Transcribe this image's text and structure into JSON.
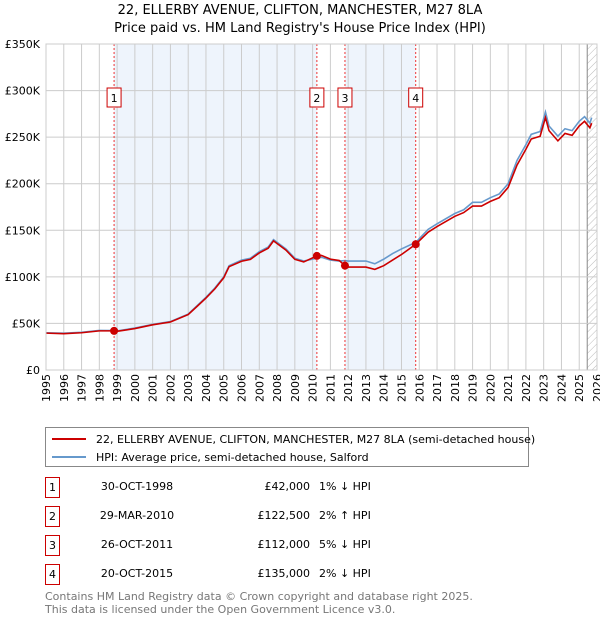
{
  "chart_data": {
    "type": "line",
    "title": "22, ELLERBY AVENUE, CLIFTON, MANCHESTER, M27 8LA",
    "subtitle": "Price paid vs. HM Land Registry's House Price Index (HPI)",
    "ylim": [
      0,
      350000
    ],
    "xlim": [
      1995,
      2026
    ],
    "y_ticks": [
      {
        "v": 0,
        "label": "£0"
      },
      {
        "v": 50000,
        "label": "£50K"
      },
      {
        "v": 100000,
        "label": "£100K"
      },
      {
        "v": 150000,
        "label": "£150K"
      },
      {
        "v": 200000,
        "label": "£200K"
      },
      {
        "v": 250000,
        "label": "£250K"
      },
      {
        "v": 300000,
        "label": "£300K"
      },
      {
        "v": 350000,
        "label": "£350K"
      }
    ],
    "x_ticks": [
      "1995",
      "1996",
      "1997",
      "1998",
      "1999",
      "2000",
      "2001",
      "2002",
      "2003",
      "2004",
      "2005",
      "2006",
      "2007",
      "2008",
      "2009",
      "2010",
      "2011",
      "2012",
      "2013",
      "2014",
      "2015",
      "2016",
      "2017",
      "2018",
      "2019",
      "2020",
      "2021",
      "2022",
      "2023",
      "2024",
      "2025",
      "2026"
    ],
    "grid": true,
    "legend_placement": "bottom",
    "series": [
      {
        "name": "22, ELLERBY AVENUE, CLIFTON, MANCHESTER, M27 8LA (semi-detached house)",
        "color": "#cc0000",
        "x": [
          1995,
          1996,
          1997,
          1998,
          1998.83,
          1999,
          2000,
          2001,
          2002,
          2003,
          2003.5,
          2004,
          2004.5,
          2005,
          2005.3,
          2006,
          2006.5,
          2007,
          2007.5,
          2007.8,
          2008.5,
          2009,
          2009.5,
          2010.24,
          2010.5,
          2011,
          2011.5,
          2011.82,
          2012,
          2013,
          2013.5,
          2014,
          2014.5,
          2015,
          2015.8,
          2016.5,
          2017,
          2018,
          2018.5,
          2019,
          2019.5,
          2020,
          2020.5,
          2021,
          2021.5,
          2022,
          2022.3,
          2022.8,
          2023.1,
          2023.3,
          2023.8,
          2024.2,
          2024.6,
          2025,
          2025.3,
          2025.6,
          2025.7
        ],
        "y": [
          39600,
          39000,
          40000,
          42000,
          42000,
          41500,
          44500,
          48500,
          51500,
          59500,
          68300,
          77200,
          87100,
          99000,
          110900,
          116800,
          118800,
          125700,
          130700,
          138600,
          128700,
          118800,
          116000,
          122500,
          123000,
          119000,
          117500,
          112000,
          110500,
          110500,
          108000,
          112000,
          118000,
          124000,
          135000,
          148000,
          154000,
          165000,
          169000,
          176000,
          176000,
          181000,
          185000,
          196000,
          220000,
          237000,
          248000,
          251000,
          271000,
          257000,
          246000,
          254000,
          252000,
          262000,
          267000,
          260000,
          265000
        ]
      },
      {
        "name": "HPI: Average price, semi-detached house, Salford",
        "color": "#6699cc",
        "x": [
          1995,
          1996,
          1997,
          1998,
          1998.83,
          1999,
          2000,
          2001,
          2002,
          2003,
          2003.5,
          2004,
          2004.5,
          2005,
          2005.3,
          2006,
          2006.5,
          2007,
          2007.5,
          2007.8,
          2008.5,
          2009,
          2009.5,
          2010.24,
          2010.5,
          2011,
          2011.5,
          2011.82,
          2012,
          2013,
          2013.5,
          2014,
          2014.5,
          2015,
          2015.8,
          2016.5,
          2017,
          2018,
          2018.5,
          2019,
          2019.5,
          2020,
          2020.5,
          2021,
          2021.5,
          2022,
          2022.3,
          2022.8,
          2023.1,
          2023.3,
          2023.8,
          2024.2,
          2024.6,
          2025,
          2025.3,
          2025.6,
          2025.7
        ],
        "y": [
          40000,
          39500,
          40500,
          42500,
          42400,
          42000,
          45000,
          49000,
          52000,
          60000,
          69000,
          78000,
          88000,
          100000,
          112000,
          118000,
          120000,
          127000,
          132000,
          140000,
          130000,
          120000,
          117000,
          120000,
          121000,
          118000,
          117000,
          117500,
          117000,
          117000,
          114000,
          119000,
          125000,
          130000,
          137000,
          151000,
          157000,
          168000,
          172000,
          180000,
          180000,
          185000,
          189000,
          200000,
          225000,
          242000,
          253000,
          256000,
          277000,
          262000,
          251000,
          259000,
          257000,
          267000,
          272000,
          265000,
          271000
        ]
      }
    ],
    "sales": [
      {
        "n": "1",
        "x": 1998.83,
        "y": 42000,
        "date": "30-OCT-1998",
        "price": "£42,000",
        "hpi": "1% ↓ HPI"
      },
      {
        "n": "2",
        "x": 2010.24,
        "y": 122500,
        "date": "29-MAR-2010",
        "price": "£122,500",
        "hpi": "2% ↑ HPI"
      },
      {
        "n": "3",
        "x": 2011.82,
        "y": 112000,
        "date": "26-OCT-2011",
        "price": "£112,000",
        "hpi": "5% ↓ HPI"
      },
      {
        "n": "4",
        "x": 2015.8,
        "y": 135000,
        "date": "20-OCT-2015",
        "price": "£135,000",
        "hpi": "2% ↓ HPI"
      }
    ],
    "forecast_from": 2025.45
  },
  "footer": {
    "line1": "Contains HM Land Registry data © Crown copyright and database right 2025.",
    "line2": "This data is licensed under the Open Government Licence v3.0."
  }
}
